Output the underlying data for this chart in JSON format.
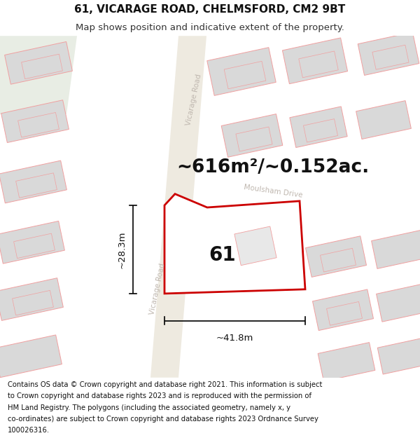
{
  "title_line1": "61, VICARAGE ROAD, CHELMSFORD, CM2 9BT",
  "title_line2": "Map shows position and indicative extent of the property.",
  "area_label": "~616m²/~0.152ac.",
  "property_number": "61",
  "width_label": "~41.8m",
  "height_label": "~28.3m",
  "footer_lines": [
    "Contains OS data © Crown copyright and database right 2021. This information is subject",
    "to Crown copyright and database rights 2023 and is reproduced with the permission of",
    "HM Land Registry. The polygons (including the associated geometry, namely x, y",
    "co-ordinates) are subject to Crown copyright and database rights 2023 Ordnance Survey",
    "100026316."
  ],
  "map_bg": "#f9f8f6",
  "road_fill": "#eeeae0",
  "bld_face": "#d9d9d9",
  "bld_edge": "#f0a0a0",
  "prop_face": "#ffffff",
  "prop_edge": "#cc0000",
  "road_lbl_color": "#c0b8b0",
  "green_fill": "#e8ede4",
  "title_fs": 11,
  "sub_fs": 9.5,
  "area_fs": 19,
  "num_fs": 20,
  "dim_fs": 9.5,
  "road_lbl_fs": 7.5,
  "footer_fs": 7.2
}
